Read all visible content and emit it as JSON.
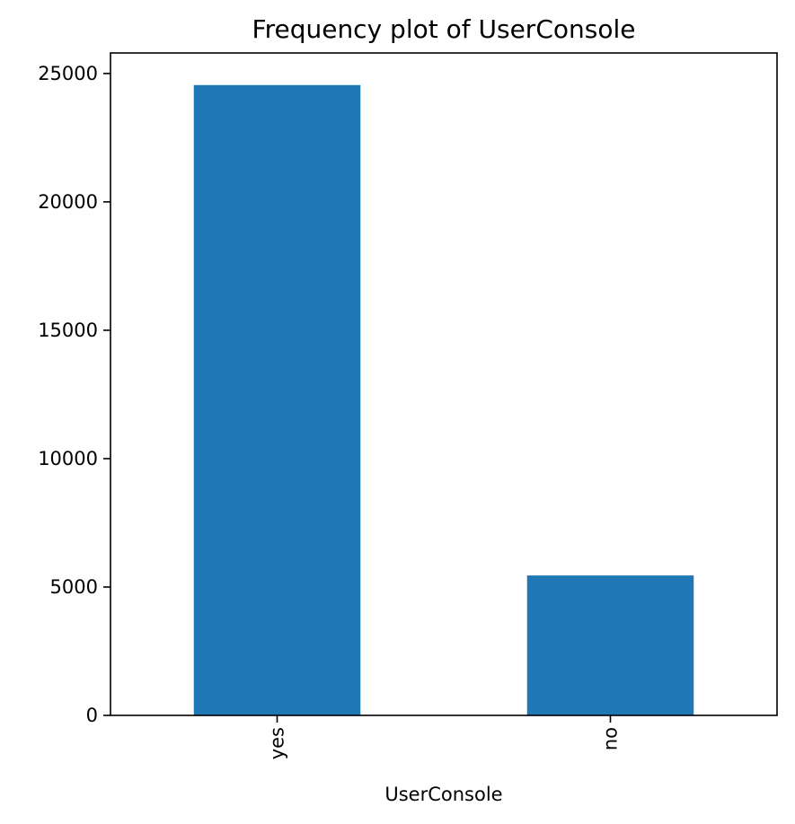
{
  "chart_data": {
    "type": "bar",
    "title": "Frequency plot of UserConsole",
    "xlabel": "UserConsole",
    "ylabel": "",
    "categories": [
      "yes",
      "no"
    ],
    "values": [
      24550,
      5450
    ],
    "ylim": [
      0,
      25800
    ],
    "yticks": [
      0,
      5000,
      10000,
      15000,
      20000,
      25000
    ],
    "ytick_labels": [
      "0",
      "5000",
      "10000",
      "15000",
      "20000",
      "25000"
    ],
    "bar_color": "#1f77b4",
    "grid": false,
    "legend": false
  }
}
